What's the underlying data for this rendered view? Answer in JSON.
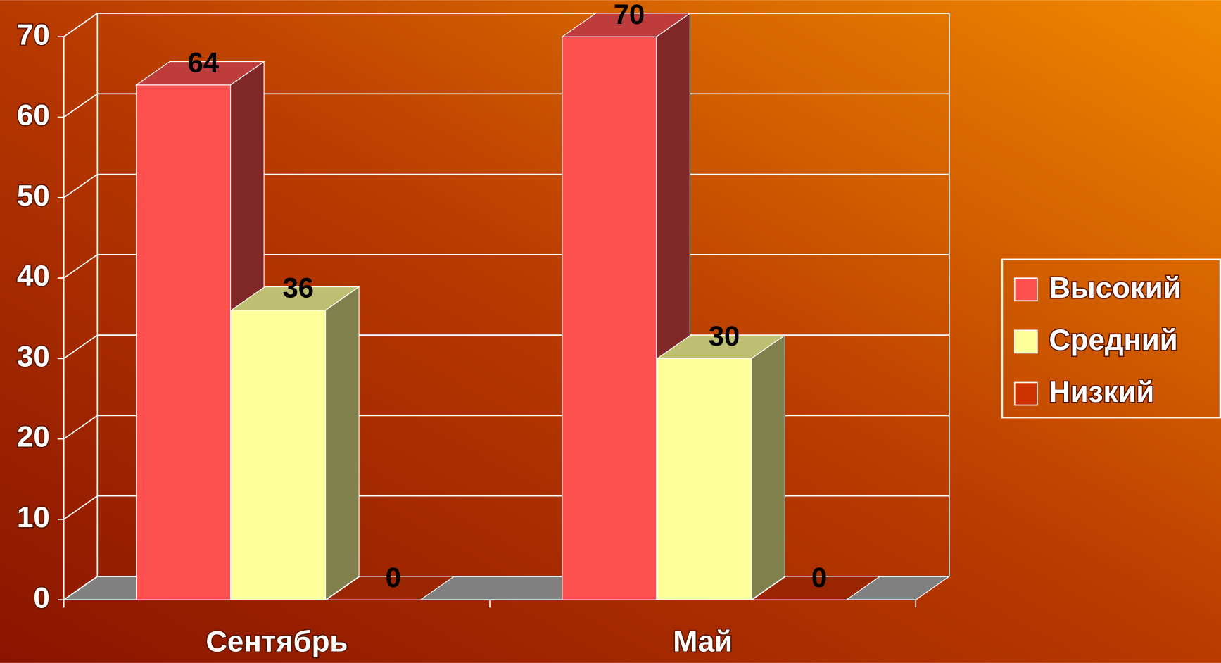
{
  "chart_data": {
    "type": "bar3d",
    "categories": [
      "Сентябрь",
      "Май"
    ],
    "series": [
      {
        "name": "Высокий",
        "color": "#ff5050",
        "values": [
          64,
          70
        ]
      },
      {
        "name": "Средний",
        "color": "#ffff99",
        "values": [
          36,
          30
        ]
      },
      {
        "name": "Низкий",
        "color": "#cc3300",
        "values": [
          0,
          0
        ]
      }
    ],
    "ylim": [
      0,
      70
    ],
    "yticks": [
      0,
      10,
      20,
      30,
      40,
      50,
      60,
      70
    ],
    "grid": true,
    "legend": "right",
    "data_labels": true
  }
}
